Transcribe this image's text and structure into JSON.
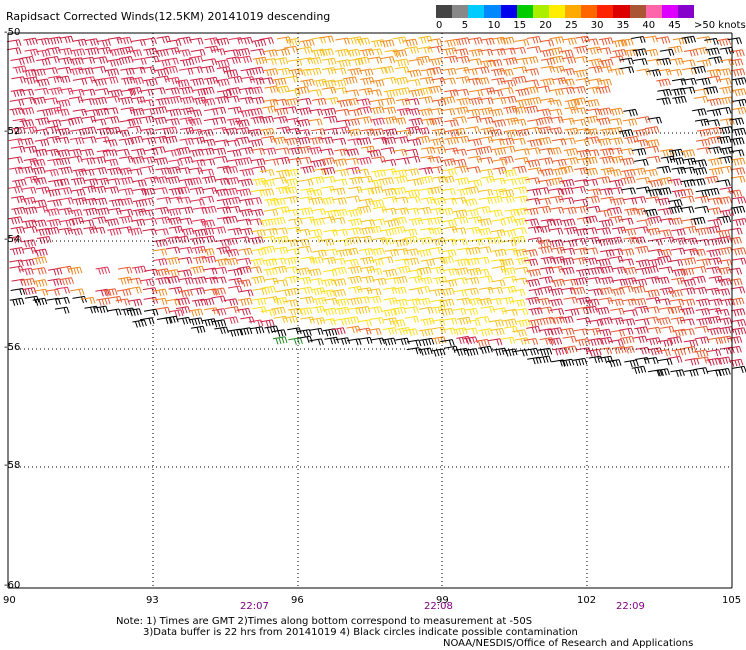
{
  "title": "Rapidsact Corrected Winds(12.5KM) 20141019 descending",
  "legend": {
    "colors": [
      "#444444",
      "#888888",
      "#00ccff",
      "#0088ff",
      "#0000ee",
      "#00cc00",
      "#aaee00",
      "#ffee00",
      "#ffaa00",
      "#ff6600",
      "#ff2200",
      "#dd0000",
      "#aa5533",
      "#ff66aa",
      "#dd00ff",
      "#8800cc"
    ],
    "ticks": [
      "0",
      "5",
      "10",
      "15",
      "20",
      "25",
      "30",
      "35",
      "40",
      "45",
      ">50 knots"
    ]
  },
  "axes": {
    "x_labels": [
      "90",
      "93",
      "96",
      "99",
      "102",
      "105"
    ],
    "y_labels": [
      "-50",
      "-52",
      "-54",
      "-56",
      "-58",
      "-60"
    ]
  },
  "times": [
    "22:07",
    "22:08",
    "22:09"
  ],
  "notes": {
    "line1": "Note: 1) Times are GMT 2)Times along bottom correspond to measurement at -50S",
    "line2": "3)Data buffer is 22 hrs from 20141019 4) Black circles indicate possible contamination",
    "line3": "NOAA/NESDIS/Office of Research and Applications"
  },
  "wind_palette": [
    "#cc2244",
    "#dd3355",
    "#e85a30",
    "#f08a20",
    "#f5c020",
    "#ffe020",
    "#000000",
    "#228b22"
  ]
}
